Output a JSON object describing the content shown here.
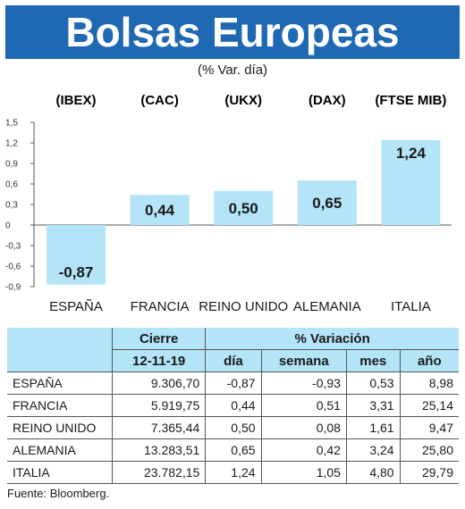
{
  "header": {
    "title": "Bolsas Europeas",
    "subtitle": "(% Var. día)"
  },
  "chart_data": {
    "type": "bar",
    "indices": [
      "(IBEX)",
      "(CAC)",
      "(UKX)",
      "(DAX)",
      "(FTSE MIB)"
    ],
    "categories": [
      "ESPAÑA",
      "FRANCIA",
      "REINO UNIDO",
      "ALEMANIA",
      "ITALIA"
    ],
    "values": [
      -0.87,
      0.44,
      0.5,
      0.65,
      1.24
    ],
    "value_labels": [
      "-0,87",
      "0,44",
      "0,50",
      "0,65",
      "1,24"
    ],
    "yticks": [
      1.5,
      1.2,
      0.9,
      0.6,
      0.3,
      0,
      -0.3,
      -0.6,
      -0.9
    ],
    "ytick_labels": [
      "1,5",
      "1,2",
      "0,9",
      "0,6",
      "0,3",
      "0",
      "-0,3",
      "-0,6",
      "-0,9"
    ],
    "ylim": [
      -0.9,
      1.5
    ],
    "bar_color": "#b3e4f7",
    "grid": false
  },
  "table": {
    "group_headers": [
      "Cierre",
      "% Variación"
    ],
    "date": "12-11-19",
    "columns": [
      "día",
      "semana",
      "mes",
      "año"
    ],
    "rows": [
      {
        "pais": "ESPAÑA",
        "cierre": "9.306,70",
        "dia": "-0,87",
        "semana": "-0,93",
        "mes": "0,53",
        "ano": "8,98"
      },
      {
        "pais": "FRANCIA",
        "cierre": "5.919,75",
        "dia": "0,44",
        "semana": "0,51",
        "mes": "3,31",
        "ano": "25,14"
      },
      {
        "pais": "REINO UNIDO",
        "cierre": "7.365,44",
        "dia": "0,50",
        "semana": "0,08",
        "mes": "1,61",
        "ano": "9,47"
      },
      {
        "pais": "ALEMANIA",
        "cierre": "13.283,51",
        "dia": "0,65",
        "semana": "0,42",
        "mes": "3,24",
        "ano": "25,80"
      },
      {
        "pais": "ITALIA",
        "cierre": "23.782,15",
        "dia": "1,24",
        "semana": "1,05",
        "mes": "4,80",
        "ano": "29,79"
      }
    ]
  },
  "source": "Fuente: Bloomberg."
}
